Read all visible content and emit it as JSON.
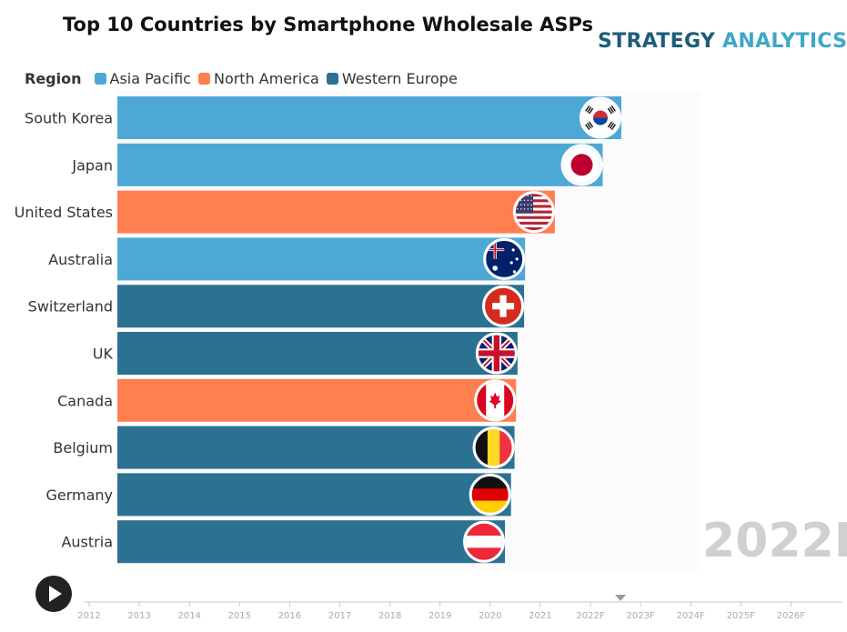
{
  "brand": {
    "word1": "STRATEGY",
    "word2": "ANALYTICS"
  },
  "chart_data": {
    "type": "bar",
    "orientation": "horizontal",
    "title": "Top 10 Countries by Smartphone Wholesale ASPs",
    "current_frame": "2022F",
    "legend": {
      "title": "Region",
      "entries": [
        {
          "name": "Asia Pacific",
          "color": "#4ea8d6"
        },
        {
          "name": "North America",
          "color": "#ff7f51"
        },
        {
          "name": "Western Europe",
          "color": "#2b7292"
        }
      ]
    },
    "timeline": {
      "labels": [
        "2012",
        "2013",
        "2014",
        "2015",
        "2016",
        "2017",
        "2018",
        "2019",
        "2020",
        "2021",
        "2022F",
        "2023F",
        "2024F",
        "2025F",
        "2026F"
      ],
      "position": 10.6
    },
    "categories": [
      "South Korea",
      "Japan",
      "United States",
      "Australia",
      "Switzerland",
      "UK",
      "Canada",
      "Belgium",
      "Germany",
      "Austria"
    ],
    "regions": [
      "Asia Pacific",
      "Asia Pacific",
      "North America",
      "Asia Pacific",
      "Western Europe",
      "Western Europe",
      "North America",
      "Western Europe",
      "Western Europe",
      "Western Europe"
    ],
    "flags": [
      "south-korea-flag",
      "japan-flag",
      "usa-flag",
      "australia-flag",
      "switzerland-flag",
      "uk-flag",
      "canada-flag",
      "belgium-flag",
      "germany-flag",
      "austria-flag"
    ],
    "values": [
      100,
      96.3,
      86.8,
      80.9,
      80.7,
      79.4,
      79.1,
      78.8,
      78.1,
      76.9
    ],
    "xlim": [
      0,
      100
    ]
  }
}
